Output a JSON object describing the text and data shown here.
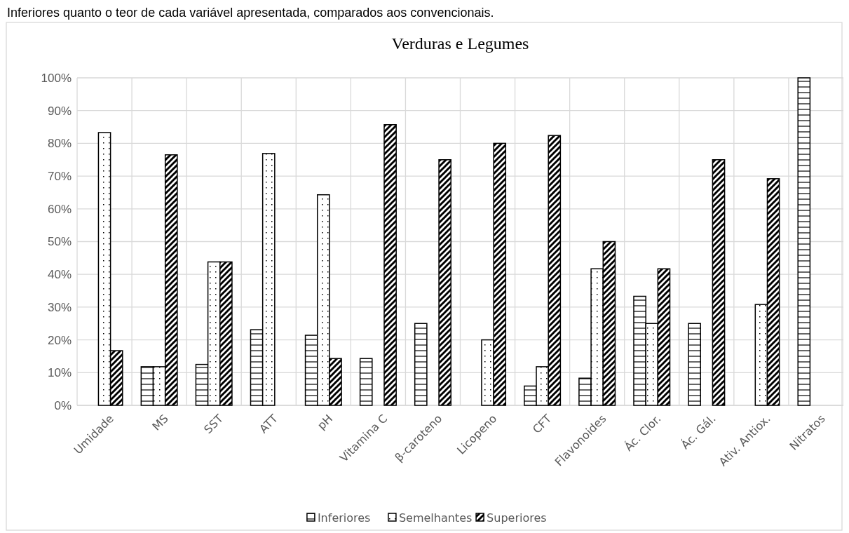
{
  "chart_data": {
    "type": "bar",
    "title": "Verduras e Legumes",
    "annotations": [
      "Inferiores quanto o teor de cada variável apresentada, comparados aos convencionais."
    ],
    "categories": [
      "Umidade",
      "MS",
      "SST",
      "ATT",
      "pH",
      "Vitamina C",
      "β-caroteno",
      "Licopeno",
      "CFT",
      "Flavonoides",
      "Ác. Clor.",
      "Ác. Gál.",
      "Ativ. Antiox.",
      "Nitratos"
    ],
    "series": [
      {
        "name": "Inferiores",
        "color": "#000000",
        "values": [
          null,
          11.8,
          12.5,
          23.1,
          21.4,
          14.3,
          25,
          null,
          5.9,
          8.3,
          33.3,
          25,
          null,
          100
        ]
      },
      {
        "name": "Semelhantes",
        "color": "#000000",
        "values": [
          83.3,
          11.8,
          43.8,
          76.9,
          64.3,
          null,
          null,
          20,
          11.8,
          41.7,
          25,
          null,
          30.8,
          null
        ]
      },
      {
        "name": "Superiores",
        "color": "#000000",
        "values": [
          16.7,
          76.5,
          43.8,
          null,
          14.3,
          85.7,
          75,
          80,
          82.4,
          50,
          41.7,
          75,
          69.2,
          null
        ]
      }
    ],
    "ylim": [
      0,
      100
    ],
    "yticks": [
      {
        "value": 0,
        "label": "0%"
      },
      {
        "value": 10,
        "label": "10%"
      },
      {
        "value": 20,
        "label": "20%"
      },
      {
        "value": 30,
        "label": "30%"
      },
      {
        "value": 40,
        "label": "40%"
      },
      {
        "value": 50,
        "label": "50%"
      },
      {
        "value": 60,
        "label": "60%"
      },
      {
        "value": 70,
        "label": "70%"
      },
      {
        "value": 80,
        "label": "80%"
      },
      {
        "value": 90,
        "label": "90%"
      },
      {
        "value": 100,
        "label": "100%"
      }
    ],
    "grid": true,
    "legend": "bottom"
  }
}
